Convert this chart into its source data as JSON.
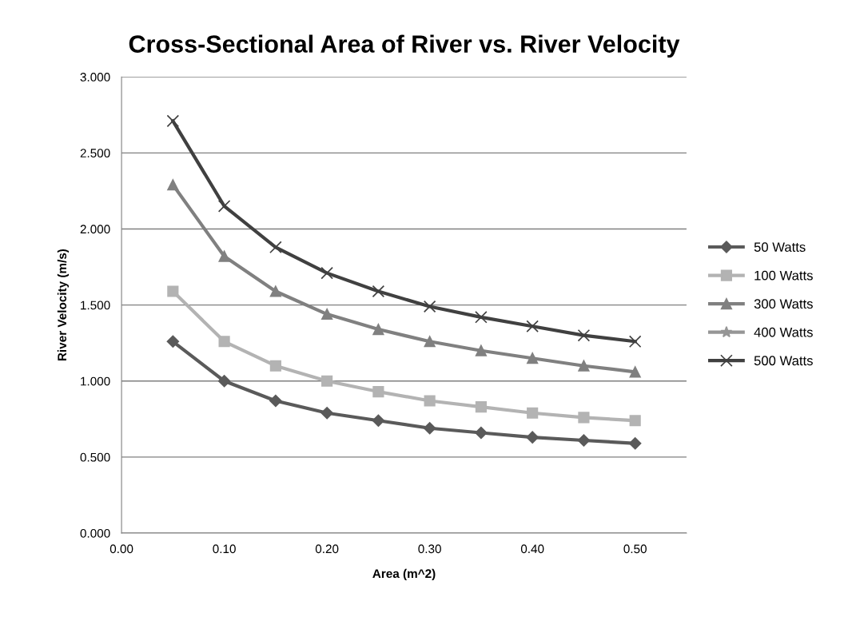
{
  "chart_data": {
    "type": "line",
    "title": "Cross-Sectional Area of River vs. River Velocity",
    "xlabel": "Area (m^2)",
    "ylabel": "River Velocity (m/s)",
    "x": [
      0.05,
      0.1,
      0.15,
      0.2,
      0.25,
      0.3,
      0.35,
      0.4,
      0.45,
      0.5
    ],
    "series": [
      {
        "name": "50 Watts",
        "color": "#5a5a5a",
        "marker": "diamond",
        "values": [
          1.26,
          1.0,
          0.87,
          0.79,
          0.74,
          0.69,
          0.66,
          0.63,
          0.61,
          0.59
        ]
      },
      {
        "name": "100 Watts",
        "color": "#b3b3b3",
        "marker": "square",
        "values": [
          1.59,
          1.26,
          1.1,
          1.0,
          0.93,
          0.87,
          0.83,
          0.79,
          0.76,
          0.74
        ]
      },
      {
        "name": "300 Watts",
        "color": "#808080",
        "marker": "triangle",
        "values": [
          2.29,
          1.82,
          1.59,
          1.44,
          1.34,
          1.26,
          1.2,
          1.15,
          1.1,
          1.06
        ]
      },
      {
        "name": "400 Watts",
        "color": "#969696",
        "marker": "star",
        "values": [
          null,
          null,
          null,
          null,
          null,
          null,
          null,
          null,
          null,
          null
        ]
      },
      {
        "name": "500 Watts",
        "color": "#404040",
        "marker": "cross",
        "values": [
          2.71,
          2.15,
          1.88,
          1.71,
          1.59,
          1.49,
          1.42,
          1.36,
          1.3,
          1.26
        ]
      }
    ],
    "xlim": [
      0,
      0.55
    ],
    "xticks": [
      {
        "value": 0,
        "label": "0.00"
      },
      {
        "value": 0.1,
        "label": "0.10"
      },
      {
        "value": 0.2,
        "label": "0.20"
      },
      {
        "value": 0.3,
        "label": "0.30"
      },
      {
        "value": 0.4,
        "label": "0.40"
      },
      {
        "value": 0.5,
        "label": "0.50"
      }
    ],
    "ylim": [
      0,
      3
    ],
    "yticks": [
      {
        "value": 0,
        "label": "0.000"
      },
      {
        "value": 0.5,
        "label": "0.500"
      },
      {
        "value": 1,
        "label": "1.000"
      },
      {
        "value": 1.5,
        "label": "1.500"
      },
      {
        "value": 2,
        "label": "2.000"
      },
      {
        "value": 2.5,
        "label": "2.500"
      },
      {
        "value": 3,
        "label": "3.000"
      }
    ],
    "grid": "y",
    "legend": "right"
  }
}
